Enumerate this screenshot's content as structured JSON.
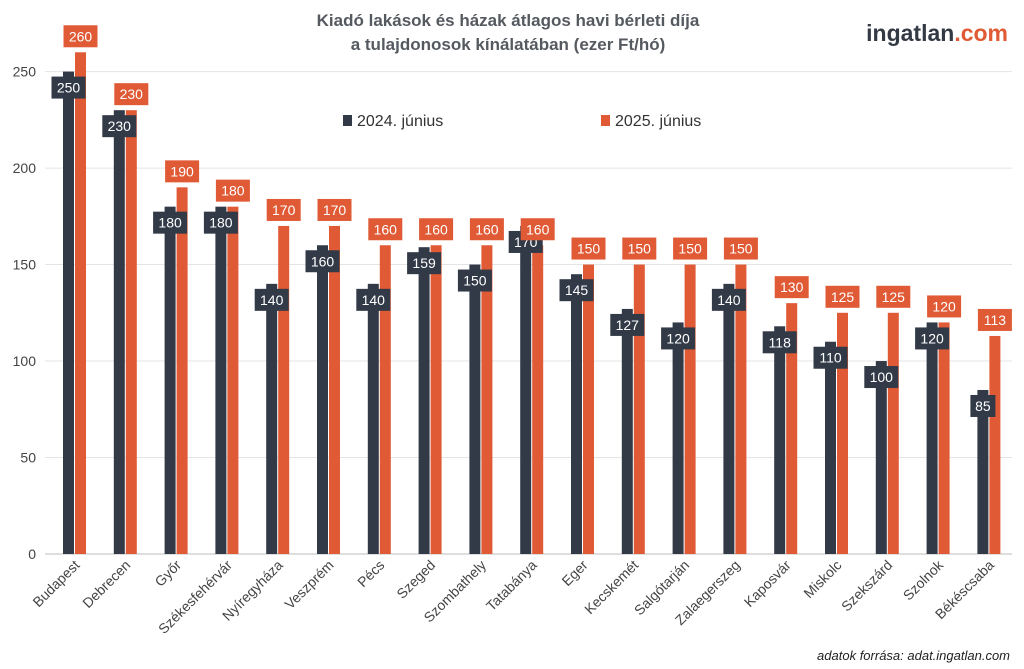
{
  "chart_data": {
    "type": "bar",
    "title_lines": [
      "Kiadó lakások és házak átlagos havi bérleti díja",
      "a tulajdonosok kínálatában (ezer Ft/hó)"
    ],
    "xlabel": "",
    "ylabel": "",
    "ylim": [
      0,
      260
    ],
    "yticks": [
      0,
      50,
      100,
      150,
      200,
      250
    ],
    "grid": true,
    "legend_position": "top",
    "categories": [
      "Budapest",
      "Debrecen",
      "Győr",
      "Székesfehérvár",
      "Nyíregyháza",
      "Veszprém",
      "Pécs",
      "Szeged",
      "Szombathely",
      "Tatabánya",
      "Eger",
      "Kecskemét",
      "Salgótarján",
      "Zalaegerszeg",
      "Kaposvár",
      "Miskolc",
      "Szekszárd",
      "Szolnok",
      "Békéscsaba"
    ],
    "series": [
      {
        "name": "2024. június",
        "color": "#323a48",
        "values": [
          250,
          230,
          180,
          180,
          140,
          160,
          140,
          159,
          150,
          170,
          145,
          127,
          120,
          140,
          118,
          110,
          100,
          120,
          85
        ]
      },
      {
        "name": "2025. június",
        "color": "#e05a35",
        "values": [
          260,
          230,
          190,
          180,
          170,
          170,
          160,
          160,
          160,
          160,
          150,
          150,
          150,
          150,
          130,
          125,
          125,
          120,
          113
        ]
      }
    ]
  },
  "logo": {
    "main": "ingatlan",
    "accent": ".com",
    "accent_color": "#e05a35"
  },
  "source": "adatok forrása: adat.ingatlan.com"
}
